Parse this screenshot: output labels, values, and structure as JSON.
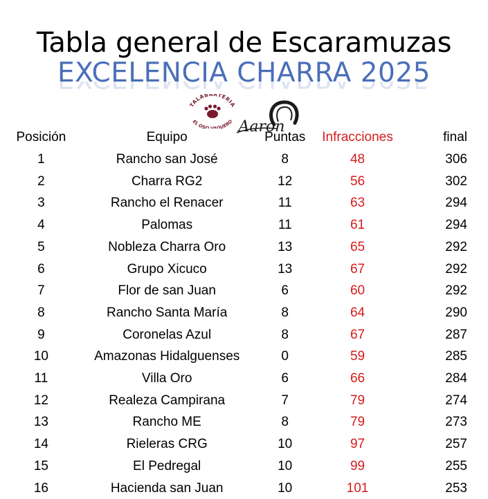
{
  "header": {
    "title": "Tabla general de Escaramuzas",
    "subtitle": "EXCELENCIA CHARRA 2025"
  },
  "logos": {
    "left_text_top": "TALABARTERIA",
    "left_text_bottom": "EL OSO VAQUERO",
    "right_text": "Aaron",
    "colors": {
      "left_logo": "#7a1a2e",
      "right_logo": "#1a1a1a"
    }
  },
  "table": {
    "columns": {
      "position": "Posición",
      "team": "Equipo",
      "points": "Puntas",
      "infractions": "Infracciones",
      "final": "final"
    },
    "rows": [
      {
        "position": "1",
        "team": "Rancho san José",
        "points": "8",
        "infractions": "48",
        "final": "306"
      },
      {
        "position": "2",
        "team": "Charra RG2",
        "points": "12",
        "infractions": "56",
        "final": "302"
      },
      {
        "position": "3",
        "team": "Rancho el Renacer",
        "points": "11",
        "infractions": "63",
        "final": "294"
      },
      {
        "position": "4",
        "team": "Palomas",
        "points": "11",
        "infractions": "61",
        "final": "294"
      },
      {
        "position": "5",
        "team": "Nobleza Charra Oro",
        "points": "13",
        "infractions": "65",
        "final": "292"
      },
      {
        "position": "6",
        "team": "Grupo Xicuco",
        "points": "13",
        "infractions": "67",
        "final": "292"
      },
      {
        "position": "7",
        "team": "Flor de san Juan",
        "points": "6",
        "infractions": "60",
        "final": "292"
      },
      {
        "position": "8",
        "team": "Rancho Santa María",
        "points": "8",
        "infractions": "64",
        "final": "290"
      },
      {
        "position": "9",
        "team": "Coronelas Azul",
        "points": "8",
        "infractions": "67",
        "final": "287"
      },
      {
        "position": "10",
        "team": "Amazonas Hidalguenses",
        "points": "0",
        "infractions": "59",
        "final": "285"
      },
      {
        "position": "11",
        "team": "Villa Oro",
        "points": "6",
        "infractions": "66",
        "final": "284"
      },
      {
        "position": "12",
        "team": "Realeza Campirana",
        "points": "7",
        "infractions": "79",
        "final": "274"
      },
      {
        "position": "13",
        "team": "Rancho ME",
        "points": "8",
        "infractions": "79",
        "final": "273"
      },
      {
        "position": "14",
        "team": "Rieleras CRG",
        "points": "10",
        "infractions": "97",
        "final": "257"
      },
      {
        "position": "15",
        "team": "El Pedregal",
        "points": "10",
        "infractions": "99",
        "final": "255"
      },
      {
        "position": "16",
        "team": "Hacienda san Juan",
        "points": "10",
        "infractions": "101",
        "final": "253"
      }
    ]
  }
}
